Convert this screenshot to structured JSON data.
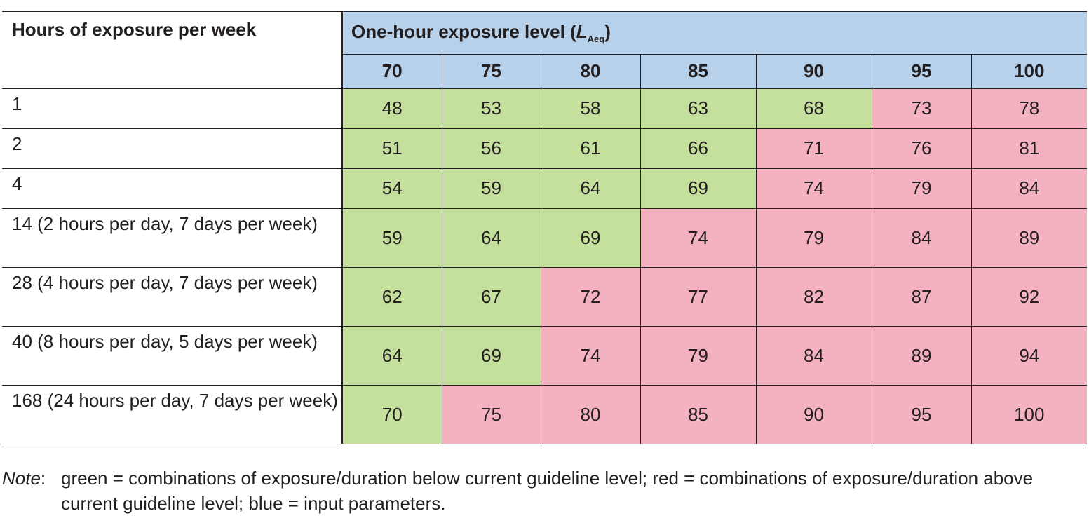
{
  "table": {
    "row_header_title": "Hours of exposure per week",
    "group_title": "One-hour exposure level (",
    "group_title_var": "L",
    "group_title_sub": "Aeq",
    "group_title_end": ")",
    "levels": [
      "70",
      "75",
      "80",
      "85",
      "90",
      "95",
      "100"
    ],
    "rows": [
      {
        "label": "1",
        "values": [
          "48",
          "53",
          "58",
          "63",
          "68",
          "73",
          "78"
        ],
        "status": [
          "green",
          "green",
          "green",
          "green",
          "green",
          "red",
          "red"
        ]
      },
      {
        "label": "2",
        "values": [
          "51",
          "56",
          "61",
          "66",
          "71",
          "76",
          "81"
        ],
        "status": [
          "green",
          "green",
          "green",
          "green",
          "red",
          "red",
          "red"
        ]
      },
      {
        "label": "4",
        "values": [
          "54",
          "59",
          "64",
          "69",
          "74",
          "79",
          "84"
        ],
        "status": [
          "green",
          "green",
          "green",
          "green",
          "red",
          "red",
          "red"
        ]
      },
      {
        "label": "14 (2 hours per day, 7 days per week)",
        "values": [
          "59",
          "64",
          "69",
          "74",
          "79",
          "84",
          "89"
        ],
        "status": [
          "green",
          "green",
          "green",
          "red",
          "red",
          "red",
          "red"
        ]
      },
      {
        "label": "28 (4 hours per day, 7 days per week)",
        "values": [
          "62",
          "67",
          "72",
          "77",
          "82",
          "87",
          "92"
        ],
        "status": [
          "green",
          "green",
          "red",
          "red",
          "red",
          "red",
          "red"
        ]
      },
      {
        "label": "40 (8 hours per day, 5 days per week)",
        "values": [
          "64",
          "69",
          "74",
          "79",
          "84",
          "89",
          "94"
        ],
        "status": [
          "green",
          "green",
          "red",
          "red",
          "red",
          "red",
          "red"
        ]
      },
      {
        "label": "168 (24 hours per day, 7 days per week)",
        "values": [
          "70",
          "75",
          "80",
          "85",
          "90",
          "95",
          "100"
        ],
        "status": [
          "green",
          "red",
          "red",
          "red",
          "red",
          "red",
          "red"
        ]
      }
    ]
  },
  "colors": {
    "header_blue": "#b8d1ea",
    "green": "#c5df9d",
    "red": "#f4b2c0"
  },
  "note": {
    "label": "Note",
    "colon": ":",
    "text": "green = combinations of exposure/duration below current guideline level; red = combinations of exposure/duration above current guideline level; blue = input parameters."
  }
}
